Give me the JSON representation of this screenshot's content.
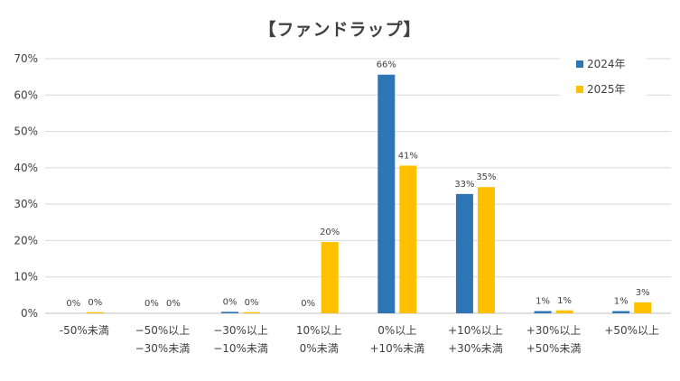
{
  "chart_data": {
    "type": "bar",
    "title": "【ファンドラップ】",
    "xlabel": "",
    "ylabel": "",
    "ylim": [
      0,
      70
    ],
    "yticks": [
      "0%",
      "10%",
      "20%",
      "30%",
      "40%",
      "50%",
      "60%",
      "70%"
    ],
    "grid": true,
    "legend_position": "top-right",
    "categories": [
      [
        "-50%未満"
      ],
      [
        "−50%以上",
        "−30%未満"
      ],
      [
        "−30%以上",
        "−10%未満"
      ],
      [
        "10%以上",
        "0%未満"
      ],
      [
        "0%以上",
        "+10%未満"
      ],
      [
        "+10%以上",
        "+30%未満"
      ],
      [
        "+30%以上",
        "+50%未満"
      ],
      [
        "+50%以上"
      ]
    ],
    "series": [
      {
        "name": "2024年",
        "color": "#2E75B6",
        "values": [
          0,
          0,
          0.4,
          0,
          65.6,
          32.8,
          0.6,
          0.6
        ],
        "labels": [
          "0%",
          "0%",
          "0%",
          "0%",
          "66%",
          "33%",
          "1%",
          "1%"
        ]
      },
      {
        "name": "2025年",
        "color": "#FFC000",
        "values": [
          0.3,
          0,
          0.3,
          19.6,
          40.6,
          34.7,
          0.8,
          3.0
        ],
        "labels": [
          "0%",
          "0%",
          "0%",
          "20%",
          "41%",
          "35%",
          "1%",
          "3%"
        ]
      }
    ]
  }
}
